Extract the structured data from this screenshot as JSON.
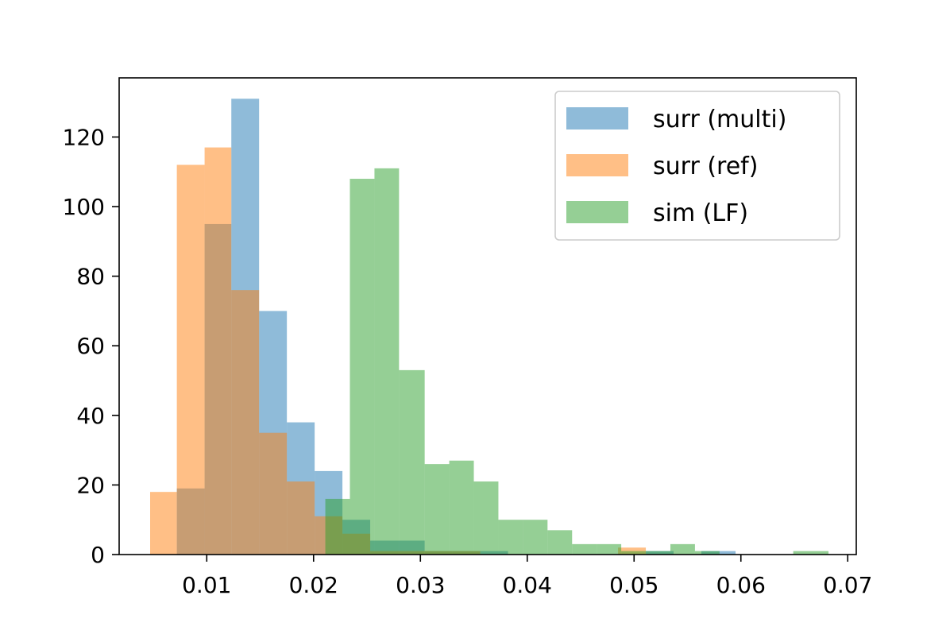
{
  "chart_data": {
    "type": "histogram",
    "title": "",
    "xlabel": "",
    "ylabel": "",
    "xlim": [
      0.0018,
      0.0708
    ],
    "ylim": [
      0,
      137
    ],
    "x_ticks": [
      "0.01",
      "0.02",
      "0.03",
      "0.04",
      "0.05",
      "0.06",
      "0.07"
    ],
    "x_tick_values": [
      0.01,
      0.02,
      0.03,
      0.04,
      0.05,
      0.06,
      0.07
    ],
    "y_ticks": [
      "0",
      "20",
      "40",
      "60",
      "80",
      "100",
      "120"
    ],
    "y_tick_values": [
      0,
      20,
      40,
      60,
      80,
      100,
      120
    ],
    "grid": false,
    "legend_position": "top-right",
    "alpha": 0.5,
    "series": [
      {
        "name": "surr (multi)",
        "color": "#1f77b4",
        "bins": [
          {
            "x0": 0.0072,
            "x1": 0.0098,
            "count": 19
          },
          {
            "x0": 0.0098,
            "x1": 0.0123,
            "count": 95
          },
          {
            "x0": 0.0123,
            "x1": 0.0149,
            "count": 131
          },
          {
            "x0": 0.0149,
            "x1": 0.0175,
            "count": 70
          },
          {
            "x0": 0.0175,
            "x1": 0.0201,
            "count": 38
          },
          {
            "x0": 0.0201,
            "x1": 0.0227,
            "count": 24
          },
          {
            "x0": 0.0227,
            "x1": 0.0253,
            "count": 10
          },
          {
            "x0": 0.0253,
            "x1": 0.0279,
            "count": 4
          },
          {
            "x0": 0.0279,
            "x1": 0.0304,
            "count": 4
          },
          {
            "x0": 0.0304,
            "x1": 0.033,
            "count": 1
          },
          {
            "x0": 0.033,
            "x1": 0.0356,
            "count": 1
          },
          {
            "x0": 0.0356,
            "x1": 0.0382,
            "count": 1
          },
          {
            "x0": 0.0382,
            "x1": 0.0408,
            "count": 0
          },
          {
            "x0": 0.0408,
            "x1": 0.0434,
            "count": 0
          },
          {
            "x0": 0.0434,
            "x1": 0.046,
            "count": 0
          },
          {
            "x0": 0.046,
            "x1": 0.0485,
            "count": 0
          },
          {
            "x0": 0.0485,
            "x1": 0.0511,
            "count": 0
          },
          {
            "x0": 0.0511,
            "x1": 0.0537,
            "count": 1
          },
          {
            "x0": 0.0537,
            "x1": 0.0563,
            "count": 0
          },
          {
            "x0": 0.0563,
            "x1": 0.0595,
            "count": 1
          }
        ]
      },
      {
        "name": "surr (ref)",
        "color": "#ff7f0e",
        "bins": [
          {
            "x0": 0.0047,
            "x1": 0.0072,
            "count": 18
          },
          {
            "x0": 0.0072,
            "x1": 0.0098,
            "count": 112
          },
          {
            "x0": 0.0098,
            "x1": 0.0123,
            "count": 117
          },
          {
            "x0": 0.0123,
            "x1": 0.0149,
            "count": 76
          },
          {
            "x0": 0.0149,
            "x1": 0.0175,
            "count": 35
          },
          {
            "x0": 0.0175,
            "x1": 0.0201,
            "count": 21
          },
          {
            "x0": 0.0201,
            "x1": 0.0227,
            "count": 11
          },
          {
            "x0": 0.0227,
            "x1": 0.0253,
            "count": 6
          },
          {
            "x0": 0.0253,
            "x1": 0.0279,
            "count": 1
          },
          {
            "x0": 0.0279,
            "x1": 0.0304,
            "count": 1
          },
          {
            "x0": 0.0304,
            "x1": 0.033,
            "count": 1
          },
          {
            "x0": 0.033,
            "x1": 0.0356,
            "count": 1
          },
          {
            "x0": 0.0356,
            "x1": 0.0382,
            "count": 0
          },
          {
            "x0": 0.0382,
            "x1": 0.0408,
            "count": 0
          },
          {
            "x0": 0.0408,
            "x1": 0.0434,
            "count": 0
          },
          {
            "x0": 0.0434,
            "x1": 0.046,
            "count": 0
          },
          {
            "x0": 0.046,
            "x1": 0.0485,
            "count": 0
          },
          {
            "x0": 0.0485,
            "x1": 0.0511,
            "count": 2
          },
          {
            "x0": 0.0511,
            "x1": 0.0537,
            "count": 0
          }
        ]
      },
      {
        "name": "sim (LF)",
        "color": "#2ca02c",
        "bins": [
          {
            "x0": 0.0211,
            "x1": 0.0234,
            "count": 16
          },
          {
            "x0": 0.0234,
            "x1": 0.0257,
            "count": 108
          },
          {
            "x0": 0.0257,
            "x1": 0.028,
            "count": 111
          },
          {
            "x0": 0.028,
            "x1": 0.0304,
            "count": 53
          },
          {
            "x0": 0.0304,
            "x1": 0.0327,
            "count": 26
          },
          {
            "x0": 0.0327,
            "x1": 0.035,
            "count": 27
          },
          {
            "x0": 0.035,
            "x1": 0.0373,
            "count": 21
          },
          {
            "x0": 0.0373,
            "x1": 0.0396,
            "count": 10
          },
          {
            "x0": 0.0396,
            "x1": 0.0419,
            "count": 10
          },
          {
            "x0": 0.0419,
            "x1": 0.0442,
            "count": 7
          },
          {
            "x0": 0.0442,
            "x1": 0.0465,
            "count": 3
          },
          {
            "x0": 0.0465,
            "x1": 0.0488,
            "count": 3
          },
          {
            "x0": 0.0488,
            "x1": 0.0511,
            "count": 1
          },
          {
            "x0": 0.0511,
            "x1": 0.0534,
            "count": 1
          },
          {
            "x0": 0.0534,
            "x1": 0.0557,
            "count": 3
          },
          {
            "x0": 0.0557,
            "x1": 0.058,
            "count": 1
          },
          {
            "x0": 0.058,
            "x1": 0.0603,
            "count": 0
          },
          {
            "x0": 0.0603,
            "x1": 0.0626,
            "count": 0
          },
          {
            "x0": 0.0626,
            "x1": 0.0649,
            "count": 0
          },
          {
            "x0": 0.0649,
            "x1": 0.0682,
            "count": 1
          }
        ]
      }
    ]
  }
}
